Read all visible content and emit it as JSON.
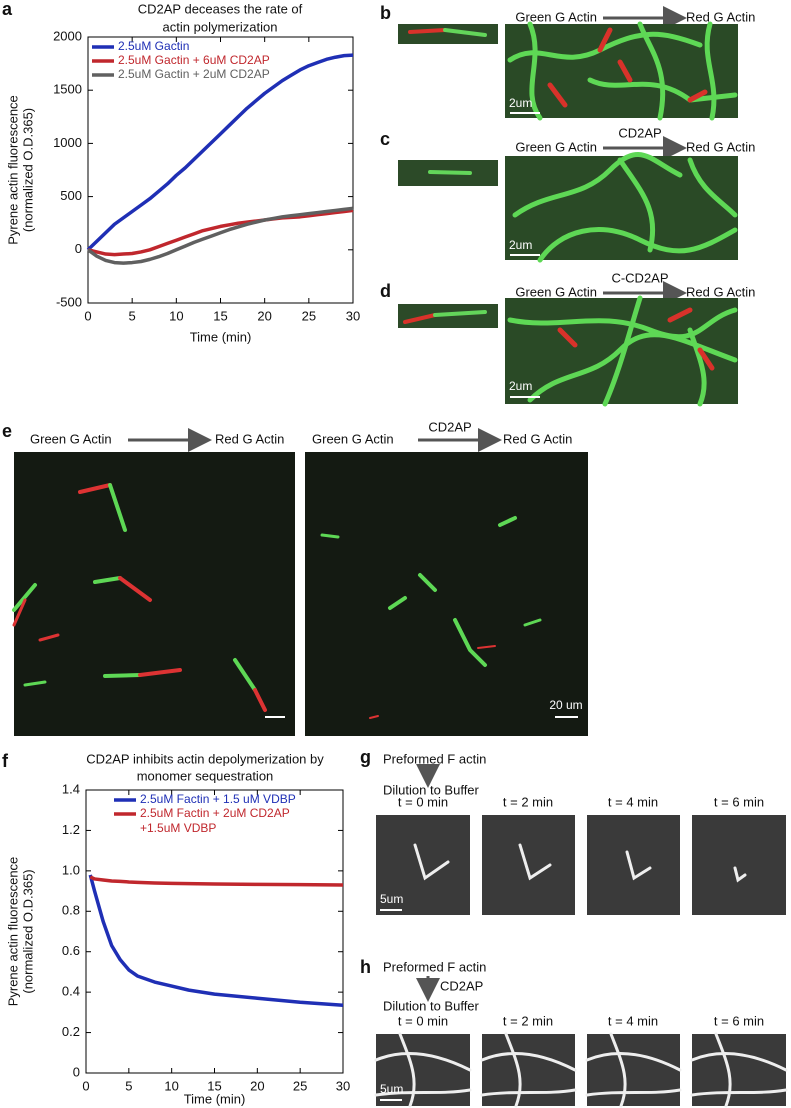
{
  "panel_labels": [
    "a",
    "b",
    "c",
    "d",
    "e",
    "f",
    "g",
    "h"
  ],
  "chart_data": [
    {
      "type": "line",
      "title": [
        "CD2AP deceases the rate of",
        "actin polymerization"
      ],
      "ylabel": [
        "Pyrene actin fluorescence",
        "(normalized O.D.365)"
      ],
      "xlabel": "Time (min)",
      "x": [
        0,
        1,
        2,
        3,
        4,
        5,
        6,
        7,
        8,
        9,
        10,
        11,
        12,
        13,
        14,
        15,
        16,
        17,
        18,
        19,
        20,
        21,
        22,
        23,
        24,
        25,
        26,
        27,
        28,
        29,
        30
      ],
      "series": [
        {
          "name": "2.5uM Gactin",
          "color": "#1f2fb5",
          "values": [
            0,
            80,
            160,
            240,
            300,
            360,
            420,
            480,
            550,
            620,
            700,
            770,
            850,
            930,
            1010,
            1090,
            1170,
            1250,
            1330,
            1400,
            1470,
            1530,
            1590,
            1640,
            1690,
            1730,
            1760,
            1790,
            1810,
            1825,
            1830
          ]
        },
        {
          "name": "2.5uM Gactin + 6uM CD2AP",
          "color": "#c0272d",
          "values": [
            0,
            -20,
            -40,
            -45,
            -40,
            -35,
            -20,
            0,
            30,
            60,
            90,
            120,
            150,
            180,
            200,
            220,
            235,
            250,
            260,
            270,
            280,
            290,
            300,
            305,
            310,
            320,
            330,
            340,
            350,
            360,
            370
          ]
        },
        {
          "name": "2.5uM Gactin + 2uM CD2AP",
          "color": "#606060",
          "values": [
            0,
            -60,
            -100,
            -120,
            -125,
            -120,
            -110,
            -90,
            -65,
            -35,
            0,
            35,
            70,
            100,
            130,
            160,
            190,
            215,
            240,
            260,
            280,
            295,
            310,
            320,
            330,
            340,
            350,
            360,
            370,
            380,
            390
          ]
        }
      ],
      "xlim": [
        0,
        30
      ],
      "xticks": [
        0,
        5,
        10,
        15,
        20,
        25,
        30
      ],
      "ylim": [
        -500,
        2000
      ],
      "yticks": [
        -500,
        0,
        500,
        1000,
        1500,
        2000
      ],
      "legend": "upper left"
    },
    {
      "type": "line",
      "title": [
        "CD2AP inhibits actin depolymerization by",
        "monomer sequestration"
      ],
      "ylabel": [
        "Pyrene actin fluorescence",
        "(normalized O.D.365)"
      ],
      "xlabel": "Time (min)",
      "x": [
        0.5,
        1,
        2,
        3,
        4,
        5,
        6,
        8,
        10,
        12,
        15,
        20,
        25,
        30
      ],
      "series": [
        {
          "name": "2.5uM Factin + 1.5 uM VDBP",
          "color": "#1f2fb5",
          "values": [
            0.98,
            0.9,
            0.75,
            0.63,
            0.56,
            0.51,
            0.48,
            0.45,
            0.43,
            0.41,
            0.39,
            0.37,
            0.35,
            0.335
          ]
        },
        {
          "name": "2.5uM Factin + 2uM CD2AP +1.5uM VDBP",
          "color": "#c0272d",
          "values": [
            0.97,
            0.96,
            0.955,
            0.95,
            0.948,
            0.945,
            0.943,
            0.94,
            0.938,
            0.937,
            0.935,
            0.933,
            0.932,
            0.93
          ]
        }
      ],
      "xlim": [
        0,
        30
      ],
      "xticks": [
        0,
        5,
        10,
        15,
        20,
        25,
        30
      ],
      "ylim": [
        0,
        1.4
      ],
      "yticks": [
        0,
        0.2,
        0.4,
        0.6,
        0.8,
        {
          "value": 1,
          "label": "1.0"
        },
        1.2,
        1.4
      ],
      "legend": "upper right"
    }
  ],
  "panel_b": {
    "from": "Green G Actin",
    "to": "Red G Actin",
    "scale_bar": "2um"
  },
  "panel_c": {
    "from": "Green G Actin",
    "treatment": "CD2AP",
    "to": "Red G Actin",
    "scale_bar": "2um"
  },
  "panel_d": {
    "from": "Green G Actin",
    "treatment": "C-CD2AP",
    "to": "Red G Actin",
    "scale_bar": "2um"
  },
  "panel_e": {
    "left": {
      "from": "Green G Actin",
      "to": "Red G Actin"
    },
    "right": {
      "from": "Green G Actin",
      "treatment": "CD2AP",
      "to": "Red G Actin"
    },
    "scale_bar": "20 um"
  },
  "panel_g": {
    "start": "Preformed F actin",
    "step": "Dilution to Buffer",
    "times": [
      "t = 0 min",
      "t = 2 min",
      "t = 4 min",
      "t = 6 min"
    ],
    "scale_bar": "5um"
  },
  "panel_h": {
    "start": "Preformed F actin",
    "treatment": "CD2AP",
    "step": "Dilution to Buffer",
    "times": [
      "t = 0 min",
      "t = 2 min",
      "t = 4 min",
      "t = 6 min"
    ],
    "scale_bar": "5um"
  }
}
